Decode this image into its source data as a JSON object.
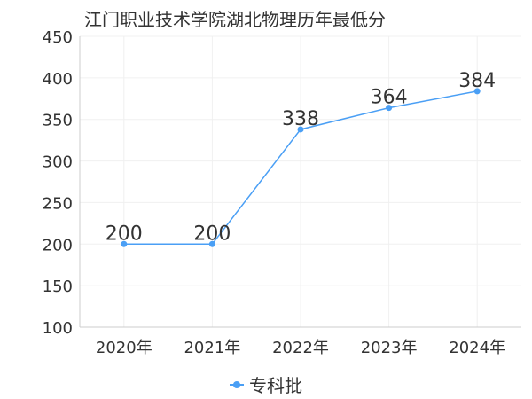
{
  "chart_data": {
    "type": "line",
    "title": "江门职业技术学院湖北物理历年最低分",
    "categories": [
      "2020年",
      "2021年",
      "2022年",
      "2023年",
      "2024年"
    ],
    "series": [
      {
        "name": "专科批",
        "values": [
          200,
          200,
          338,
          364,
          384
        ],
        "color": "#4a9ff5"
      }
    ],
    "y_ticks": [
      "100",
      "150",
      "200",
      "250",
      "300",
      "350",
      "400",
      "450"
    ],
    "ylim": [
      100,
      450
    ],
    "grid": true,
    "legend_position": "bottom-center",
    "data_labels": true
  }
}
